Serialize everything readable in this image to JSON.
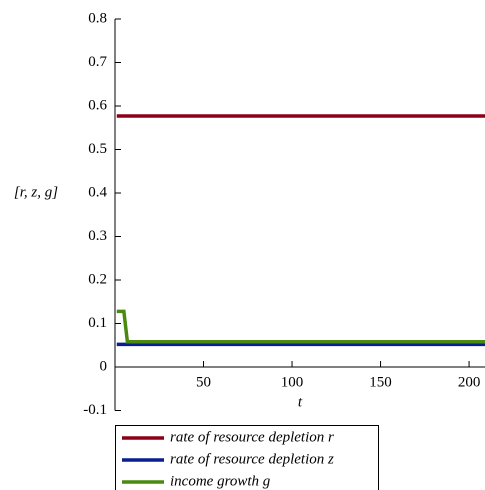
{
  "chart_data": {
    "type": "line",
    "xlabel": "t",
    "ylabel": "[r, z, g]",
    "xlim": [
      0,
      209
    ],
    "xticks": [
      50,
      100,
      150,
      200
    ],
    "ylim": [
      -0.1,
      0.8
    ],
    "yticks": [
      -0.1,
      0,
      0.1,
      0.2,
      0.3,
      0.4,
      0.5,
      0.6,
      0.7,
      0.8
    ],
    "series": [
      {
        "name": "rate of resource depletion r",
        "color": "#8b0016",
        "x": [
          1,
          209
        ],
        "values": [
          0.577,
          0.577
        ]
      },
      {
        "name": "rate of resource depletion z",
        "color": "#0a1f8f",
        "x": [
          1,
          209
        ],
        "values": [
          0.052,
          0.052
        ]
      },
      {
        "name": "income growth g",
        "color": "#4a8a10",
        "x": [
          1,
          5,
          7,
          209
        ],
        "values": [
          0.128,
          0.128,
          0.058,
          0.058
        ]
      }
    ]
  }
}
